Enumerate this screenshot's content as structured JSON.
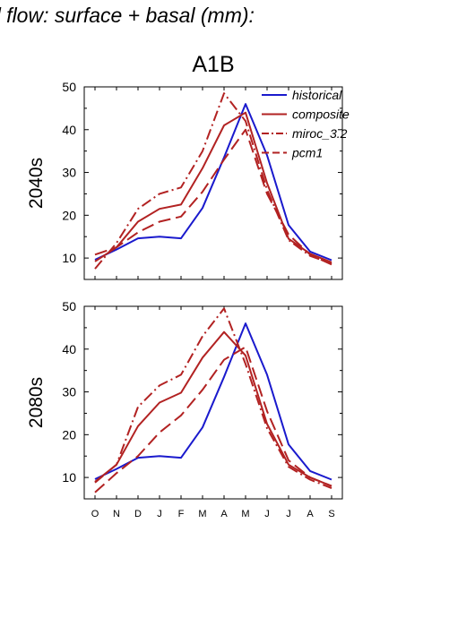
{
  "figure": {
    "title": "d flow: surface + basal (mm):",
    "panel_title": "A1B"
  },
  "colors": {
    "historical": "#1a1acd",
    "projection": "#b22222",
    "axes": "#000000"
  },
  "chart_data": [
    {
      "type": "line",
      "row_label": "2040s",
      "categories": [
        "O",
        "N",
        "D",
        "J",
        "F",
        "M",
        "A",
        "M",
        "J",
        "J",
        "A",
        "S"
      ],
      "ylim": [
        5,
        50
      ],
      "yticks": [
        10,
        20,
        30,
        40,
        50
      ],
      "legend_position": "top-right",
      "series": [
        {
          "name": "historical",
          "color": "#1a1acd",
          "dash": "solid",
          "values": [
            9.6,
            12,
            14.6,
            15,
            14.6,
            21.7,
            33.5,
            46,
            34,
            17.7,
            11.5,
            9.5
          ]
        },
        {
          "name": "composite",
          "color": "#b22222",
          "dash": "solid",
          "values": [
            9.2,
            12.5,
            18.5,
            21.5,
            22.5,
            31,
            41,
            44,
            27.5,
            14.5,
            11,
            9
          ]
        },
        {
          "name": "miroc_3.2",
          "color": "#b22222",
          "dash": "dashdot",
          "values": [
            7.5,
            13.5,
            21.5,
            25,
            26.5,
            35,
            48.5,
            42,
            26,
            14.2,
            10.5,
            8.7
          ]
        },
        {
          "name": "pcm1",
          "color": "#b22222",
          "dash": "dash",
          "values": [
            10.8,
            12.5,
            16,
            18.5,
            19.7,
            25.5,
            33,
            40,
            25,
            15.5,
            10.8,
            8.5
          ]
        }
      ]
    },
    {
      "type": "line",
      "row_label": "2080s",
      "categories": [
        "O",
        "N",
        "D",
        "J",
        "F",
        "M",
        "A",
        "M",
        "J",
        "J",
        "A",
        "S"
      ],
      "ylim": [
        5,
        50
      ],
      "yticks": [
        10,
        20,
        30,
        40,
        50
      ],
      "series": [
        {
          "name": "historical",
          "color": "#1a1acd",
          "dash": "solid",
          "values": [
            9.6,
            12,
            14.6,
            15,
            14.6,
            21.7,
            33.5,
            46,
            34,
            17.7,
            11.5,
            9.5
          ]
        },
        {
          "name": "composite",
          "color": "#b22222",
          "dash": "solid",
          "values": [
            9,
            13,
            22,
            27.5,
            29.8,
            38,
            44,
            38.5,
            22.5,
            13,
            10,
            8
          ]
        },
        {
          "name": "miroc_3.2",
          "color": "#b22222",
          "dash": "dashdot",
          "values": [
            8.8,
            13,
            26.5,
            31.5,
            34,
            43,
            49.5,
            36.5,
            21.5,
            12.5,
            9.5,
            7.5
          ]
        },
        {
          "name": "pcm1",
          "color": "#b22222",
          "dash": "dash",
          "values": [
            6.5,
            11,
            15,
            20.5,
            24.5,
            30.5,
            37.5,
            40.5,
            25.5,
            14,
            10,
            8
          ]
        }
      ]
    }
  ]
}
